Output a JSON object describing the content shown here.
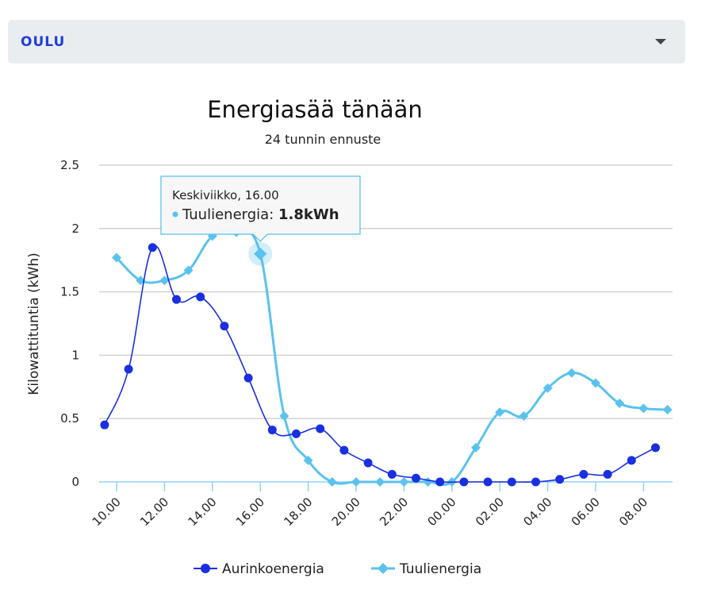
{
  "location_select": {
    "selected": "OULU",
    "icon": "caret-down-icon"
  },
  "chart_data": {
    "type": "line",
    "title": "Energiasää tänään",
    "subtitle": "24 tunnin ennuste",
    "ylabel": "Kilowattituntia (kWh)",
    "xlabel": "",
    "ylim": [
      0,
      2.5
    ],
    "yticks": [
      "0",
      "0.5",
      "1",
      "1.5",
      "2",
      "2.5"
    ],
    "ytick_values": [
      0,
      0.5,
      1,
      1.5,
      2,
      2.5
    ],
    "grid": true,
    "legend_position": "bottom",
    "x_hours": [
      9.5,
      10,
      10.5,
      11,
      11.5,
      12,
      12.5,
      13,
      13.5,
      14,
      14.5,
      15,
      15.5,
      16,
      16.5,
      17,
      17.5,
      18,
      18.5,
      19,
      19.5,
      20,
      20.5,
      21,
      21.5,
      22,
      22.5,
      23,
      23.5,
      24,
      24.5,
      25,
      25.5,
      26,
      26.5,
      27,
      27.5,
      28,
      28.5,
      29,
      29.5,
      30,
      30.5,
      31,
      31.5,
      32,
      32.5,
      33
    ],
    "xticks": [
      "10.00",
      "12.00",
      "14.00",
      "16.00",
      "18.00",
      "20.00",
      "22.00",
      "00.00",
      "02.00",
      "04.00",
      "06.00",
      "08.00"
    ],
    "xtick_hours": [
      10,
      12,
      14,
      16,
      18,
      20,
      22,
      24,
      26,
      28,
      30,
      32
    ],
    "series": [
      {
        "name": "Aurinkoenergia",
        "color": "#1a2fe0",
        "marker": "circle",
        "points": [
          [
            9.5,
            0.45
          ],
          [
            10.5,
            0.89
          ],
          [
            11.5,
            1.85
          ],
          [
            12.5,
            1.44
          ],
          [
            13.5,
            1.46
          ],
          [
            14.5,
            1.23
          ],
          [
            15.5,
            0.82
          ],
          [
            16.5,
            0.41
          ],
          [
            17.5,
            0.38
          ],
          [
            18.5,
            0.42
          ],
          [
            19.5,
            0.25
          ],
          [
            20.5,
            0.15
          ],
          [
            21.5,
            0.06
          ],
          [
            22.5,
            0.03
          ],
          [
            23.5,
            0.0
          ],
          [
            24.5,
            0.0
          ],
          [
            25.5,
            0.0
          ],
          [
            26.5,
            0.0
          ],
          [
            27.5,
            0.0
          ],
          [
            28.5,
            0.02
          ],
          [
            29.5,
            0.06
          ],
          [
            30.5,
            0.06
          ],
          [
            31.5,
            0.17
          ],
          [
            32.5,
            0.27
          ]
        ]
      },
      {
        "name": "Tuulienergia",
        "color": "#5ac2ee",
        "marker": "diamond",
        "points": [
          [
            10,
            1.77
          ],
          [
            11,
            1.59
          ],
          [
            12,
            1.59
          ],
          [
            13,
            1.67
          ],
          [
            14,
            1.94
          ],
          [
            15,
            1.97
          ],
          [
            16,
            1.8
          ],
          [
            17,
            0.52
          ],
          [
            18,
            0.17
          ],
          [
            19,
            0.0
          ],
          [
            20,
            0.0
          ],
          [
            21,
            0.0
          ],
          [
            22,
            0.0
          ],
          [
            23,
            0.0
          ],
          [
            24,
            0.0
          ],
          [
            25,
            0.27
          ],
          [
            26,
            0.55
          ],
          [
            27,
            0.52
          ],
          [
            28,
            0.74
          ],
          [
            29,
            0.86
          ],
          [
            30,
            0.78
          ],
          [
            31,
            0.62
          ],
          [
            32,
            0.58
          ],
          [
            33,
            0.57
          ]
        ]
      }
    ],
    "tooltip": {
      "header": "Keskiviikko, 16.00",
      "series": "Tuulienergia",
      "separator": ": ",
      "value": "1.8kWh",
      "hover_hour": 16,
      "hover_value": 1.8
    }
  }
}
